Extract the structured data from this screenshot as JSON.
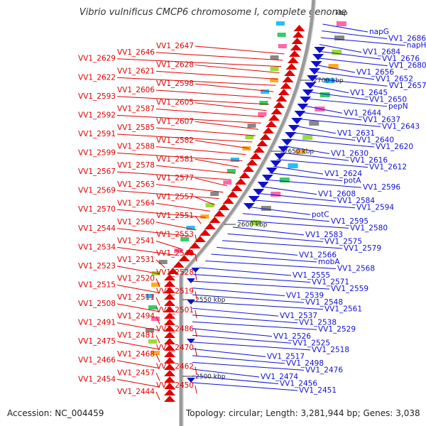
{
  "title": "Vibrio vulnificus CMCP6 chromosome I, complete genome",
  "unit": "kbp",
  "accession_text": "Accession: NC_004459",
  "summary_text": "Topology: circular; Length: 3,281,944 bp; Genes: 3,038",
  "ticks": [
    "2700 kbp",
    "2650 kbp",
    "2600 kbp",
    "2550 kbp",
    "2500 kbp"
  ],
  "colors": {
    "forward": "#e00000",
    "reverse": "#1010d0",
    "backbone": "#9a9a9a"
  },
  "left_labels": [
    "VV1_2647",
    "VV1_2646",
    "VV1_2629",
    "VV1_2628",
    "VV1_2621",
    "VV1_2622",
    "VV1_2598",
    "VV1_2606",
    "VV1_2593",
    "VV1_2605",
    "VV1_2587",
    "VV1_2592",
    "VV1_2607",
    "VV1_2585",
    "VV1_2591",
    "VV1_2582",
    "VV1_2588",
    "VV1_2599",
    "VV1_2581",
    "VV1_2578",
    "VV1_2567",
    "VV1_2577",
    "VV1_2563",
    "VV1_2569",
    "VV1_2557",
    "VV1_2564",
    "VV1_2570",
    "VV1_2551",
    "VV1_2560",
    "VV1_2544",
    "VV1_2553",
    "VV1_2541",
    "VV1_2534",
    "VV1_2540",
    "VV1_2531",
    "VV1_2523",
    "VV1_2528",
    "VV1_2520",
    "VV1_2515",
    "VV1_2519",
    "VV1_2511",
    "VV1_2508",
    "VV1_2501",
    "VV1_2494",
    "VV1_2491",
    "VV1_2486",
    "VV1_2481",
    "VV1_2475",
    "VV1_2470",
    "VV1_2468",
    "VV1_2466",
    "VV1_2462",
    "VV1_2457",
    "VV1_2454",
    "VV1_2450",
    "VV1_2444"
  ],
  "right_labels": [
    "napG",
    "VV1_2686",
    "napH",
    "VV1_2684",
    "VV1_2676",
    "VV1_2680",
    "VV1_2656",
    "VV1_2652",
    "VV1_2657",
    "VV1_2645",
    "VV1_2650",
    "pepN",
    "VV1_2644",
    "VV1_2637",
    "VV1_2643",
    "VV1_2631",
    "VV1_2640",
    "VV1_2620",
    "VV1_2630",
    "VV1_2616",
    "VV1_2612",
    "VV1_2624",
    "potA",
    "VV1_2596",
    "VV1_2608",
    "VV1_2584",
    "VV1_2594",
    "potC",
    "VV1_2595",
    "VV1_2580",
    "VV1_2583",
    "VV1_2575",
    "VV1_2579",
    "VV1_2566",
    "mobA",
    "VV1_2568",
    "VV1_2555",
    "VV1_2571",
    "VV1_2559",
    "VV1_2539",
    "VV1_2548",
    "VV1_2561",
    "VV1_2537",
    "VV1_2538",
    "VV1_2529",
    "VV1_2526",
    "VV1_2525",
    "VV1_2518",
    "VV1_2517",
    "VV1_2498",
    "VV1_2476",
    "VV1_2474",
    "VV1_2456",
    "VV1_2451"
  ]
}
